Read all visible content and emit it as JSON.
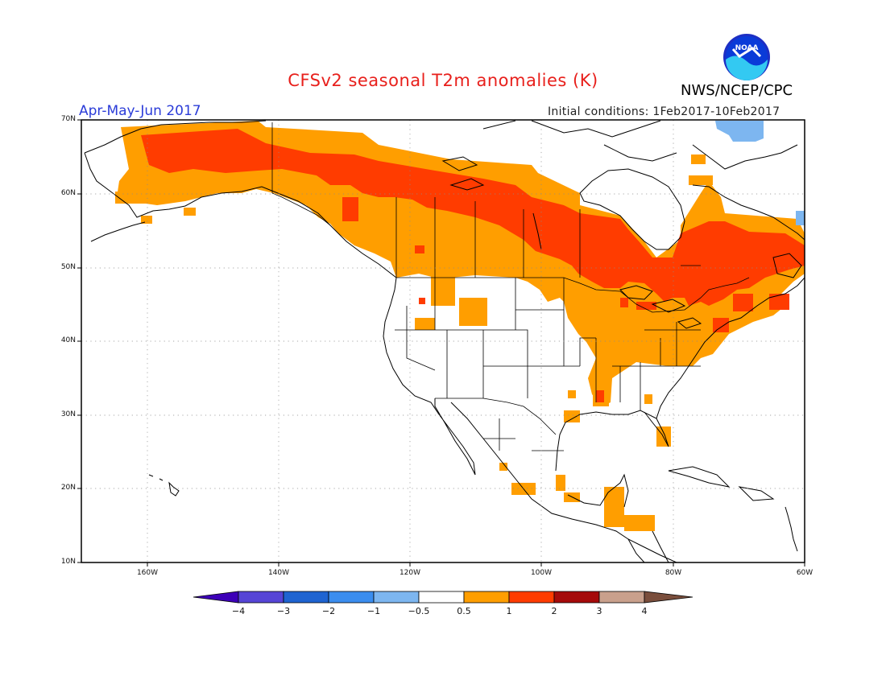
{
  "header": {
    "title": "CFSv2 seasonal T2m anomalies (K)",
    "agency": "NWS/NCEP/CPC",
    "season": "Apr-May-Jun 2017",
    "initial_conditions": "Initial conditions: 1Feb2017-10Feb2017",
    "logo_text": "NOAA"
  },
  "map": {
    "lat_labels": [
      "70N",
      "60N",
      "50N",
      "40N",
      "30N",
      "20N",
      "10N"
    ],
    "lon_labels": [
      "160W",
      "140W",
      "120W",
      "100W",
      "80W",
      "60W"
    ],
    "lat_range": [
      10,
      70
    ],
    "lon_range": [
      -170,
      -60
    ],
    "categories": {
      "strong_warm": {
        "range": "1 to 2",
        "color": "#ff3c00"
      },
      "warm": {
        "range": "0.5 to 1",
        "color": "#ff9e00"
      },
      "cool": {
        "range": "-1 to -0.5",
        "color": "#7db6f0"
      }
    }
  },
  "colorbar": {
    "colors": [
      "#3d00b8",
      "#5645d6",
      "#1f64d1",
      "#3b8def",
      "#7db6f0",
      "#ffffff",
      "#ff9e00",
      "#ff3c00",
      "#a50a0a",
      "#c9a08c",
      "#7a4e3c"
    ],
    "labels": [
      "−4",
      "−3",
      "−2",
      "−1",
      "−0.5",
      "0.5",
      "1",
      "2",
      "3",
      "4"
    ]
  }
}
